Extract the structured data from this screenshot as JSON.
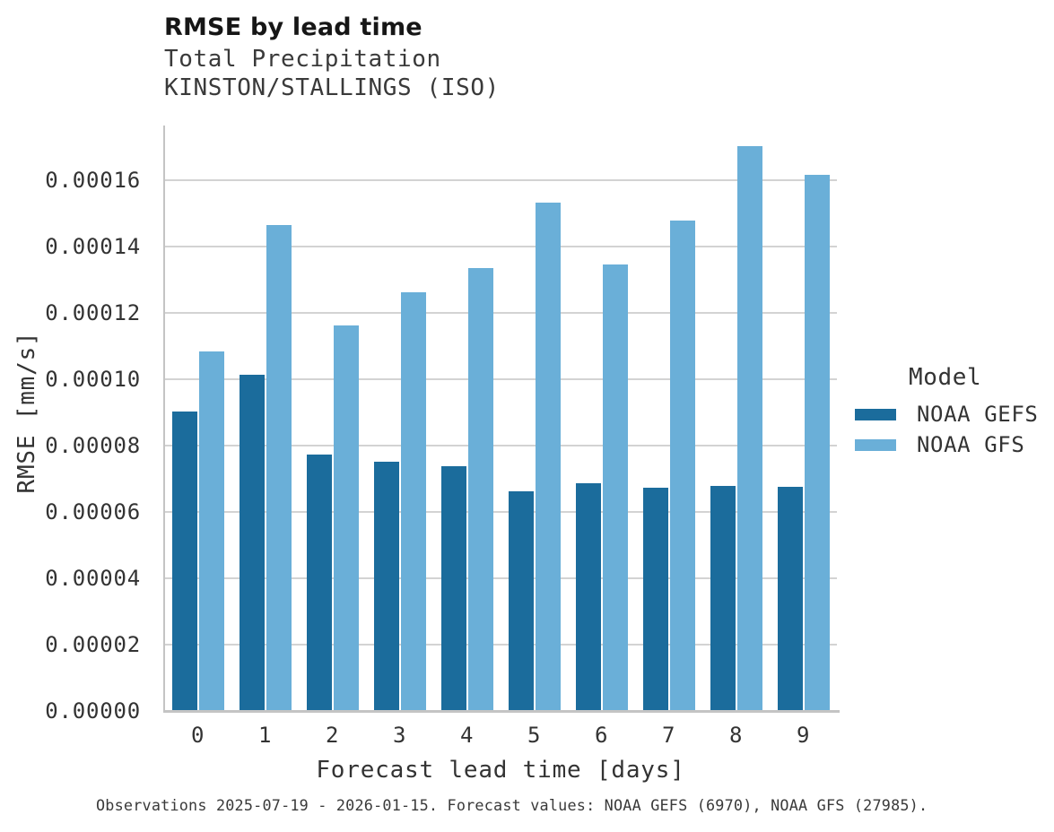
{
  "chart_data": {
    "type": "bar",
    "title": "RMSE by lead time",
    "subtitle_lines": [
      "Total Precipitation",
      "KINSTON/STALLINGS (ISO)"
    ],
    "xlabel": "Forecast lead time [days]",
    "ylabel": "RMSE [mm/s]",
    "legend_title": "Model",
    "legend_position": "right",
    "grid": true,
    "background_color": "#ffffff",
    "categories": [
      "0",
      "1",
      "2",
      "3",
      "4",
      "5",
      "6",
      "7",
      "8",
      "9"
    ],
    "series": [
      {
        "name": "NOAA GEFS",
        "color": "#1B6C9C",
        "values": [
          9.02e-05,
          0.0001013,
          7.72e-05,
          7.52e-05,
          7.37e-05,
          6.63e-05,
          6.87e-05,
          6.72e-05,
          6.79e-05,
          6.76e-05
        ]
      },
      {
        "name": "NOAA GFS",
        "color": "#6AAFD8",
        "values": [
          0.0001083,
          0.0001465,
          0.0001161,
          0.0001263,
          0.0001336,
          0.0001533,
          0.0001345,
          0.0001478,
          0.0001703,
          0.0001616
        ]
      }
    ],
    "ylim": [
      0,
      0.000176
    ],
    "yticks": {
      "values": [
        0,
        2e-05,
        4e-05,
        6e-05,
        8e-05,
        0.0001,
        0.00012,
        0.00014,
        0.00016
      ],
      "labels": [
        "0.00000",
        "0.00002",
        "0.00004",
        "0.00006",
        "0.00008",
        "0.00010",
        "0.00012",
        "0.00014",
        "0.00016"
      ]
    }
  },
  "footer": "Observations 2025-07-19 - 2026-01-15. Forecast values: NOAA GEFS (6970), NOAA GFS (27985)."
}
